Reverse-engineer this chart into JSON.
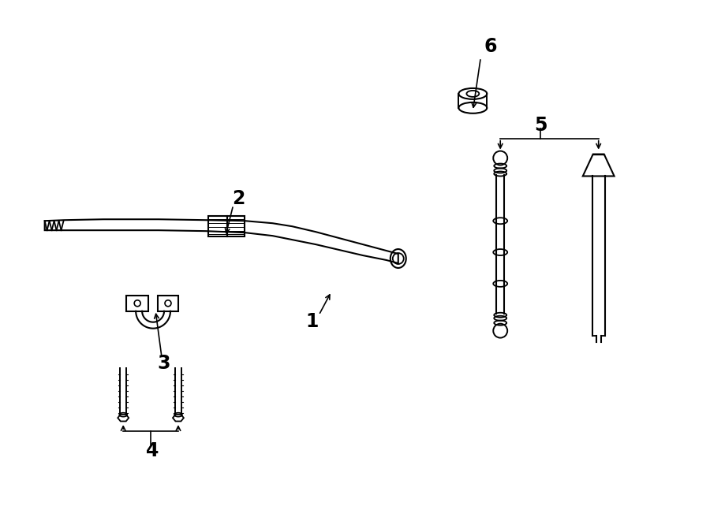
{
  "bg_color": "#ffffff",
  "line_color": "#000000",
  "label_color": "#000000",
  "arrow_color": "#000000"
}
